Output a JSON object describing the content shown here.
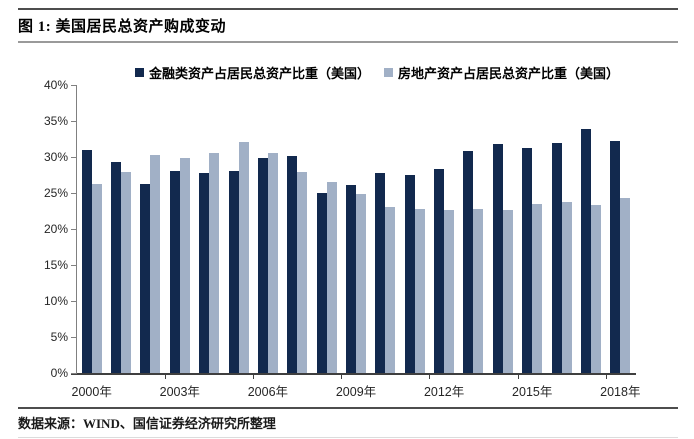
{
  "header": {
    "title": "图 1: 美国居民总资产购成变动"
  },
  "footer": {
    "source": "数据来源：WIND、国信证券经济研究所整理"
  },
  "colors": {
    "financial_series": "#12294e",
    "realestate_series": "#a1b0c6",
    "axis": "#808080",
    "x_axis": "#3f3f3f"
  },
  "chart_data": {
    "type": "bar",
    "title": "",
    "xlabel": "",
    "ylabel": "",
    "categories": [
      "2000",
      "2001",
      "2002",
      "2003",
      "2004",
      "2005",
      "2006",
      "2007",
      "2008",
      "2009",
      "2010",
      "2011",
      "2012",
      "2013",
      "2014",
      "2015",
      "2016",
      "2017",
      "2018"
    ],
    "series": [
      {
        "name": "金融类资产占居民总资产比重（美国）",
        "color": "#12294e",
        "values": [
          31.0,
          29.3,
          26.2,
          28.0,
          27.8,
          28.0,
          29.8,
          30.2,
          25.0,
          26.1,
          27.8,
          27.5,
          28.4,
          30.9,
          31.8,
          31.2,
          32.0,
          33.9,
          32.2
        ]
      },
      {
        "name": "房地产资产占居民总资产比重（美国）",
        "color": "#a1b0c6",
        "values": [
          26.2,
          27.9,
          30.3,
          29.9,
          30.6,
          32.1,
          30.6,
          27.9,
          26.5,
          24.8,
          23.1,
          22.8,
          22.7,
          22.8,
          22.7,
          23.5,
          23.7,
          23.4,
          24.3
        ]
      }
    ],
    "ylim": [
      0,
      40
    ],
    "y_tick_step": 5,
    "y_tick_suffix": "%",
    "x_tick_labels": [
      "2000年",
      "2003年",
      "2006年",
      "2009年",
      "2012年",
      "2015年",
      "2018年"
    ],
    "x_tick_indices": [
      0,
      3,
      6,
      9,
      12,
      15,
      18
    ],
    "legend_position": "top",
    "grid": false
  }
}
